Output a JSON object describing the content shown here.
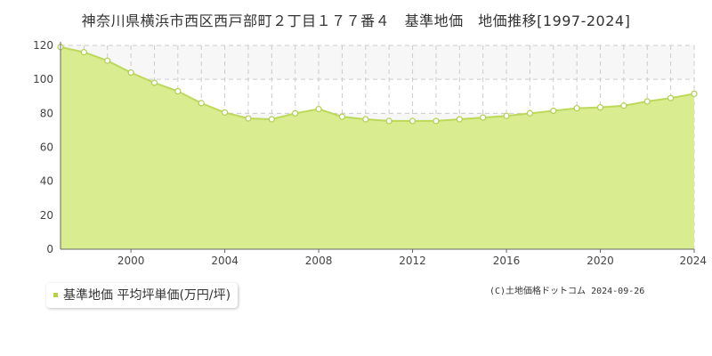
{
  "title": "神奈川県横浜市西区西戸部町２丁目１７７番４　基準地価　地価推移[1997-2024]",
  "legend_label": "基準地価 平均坪単価(万円/坪)",
  "credit": "(C)土地価格ドットコム 2024-09-26",
  "colors": {
    "area_fill": "#d9ec8f",
    "line": "#bcd95a",
    "marker_fill": "#ffffff",
    "marker_stroke": "#b0d050",
    "band": "#f7f7f7",
    "grid": "#cccccc",
    "legend_marker": "#b5d33a"
  },
  "chart_data": {
    "type": "area",
    "title": "神奈川県横浜市西区西戸部町２丁目１７７番４　基準地価　地価推移[1997-2024]",
    "x": [
      1997,
      1998,
      1999,
      2000,
      2001,
      2002,
      2003,
      2004,
      2005,
      2006,
      2007,
      2008,
      2009,
      2010,
      2011,
      2012,
      2013,
      2014,
      2015,
      2016,
      2017,
      2018,
      2019,
      2020,
      2021,
      2022,
      2023,
      2024
    ],
    "series": [
      {
        "name": "基準地価 平均坪単価(万円/坪)",
        "values": [
          119,
          116,
          111,
          104,
          98,
          93,
          86,
          80.5,
          77,
          76.5,
          80,
          82.5,
          78,
          76.5,
          75.5,
          75.5,
          75.5,
          76.5,
          77.5,
          78.5,
          80,
          81.5,
          83,
          83.5,
          84.5,
          87,
          89,
          91.5
        ]
      }
    ],
    "xlim": [
      1997,
      2024
    ],
    "ylim": [
      0,
      120
    ],
    "yticks": [
      0,
      20,
      40,
      60,
      80,
      100,
      120
    ],
    "xticks": [
      2000,
      2004,
      2008,
      2012,
      2016,
      2020,
      2024
    ],
    "grid": true,
    "legend_position": "bottom-left"
  }
}
